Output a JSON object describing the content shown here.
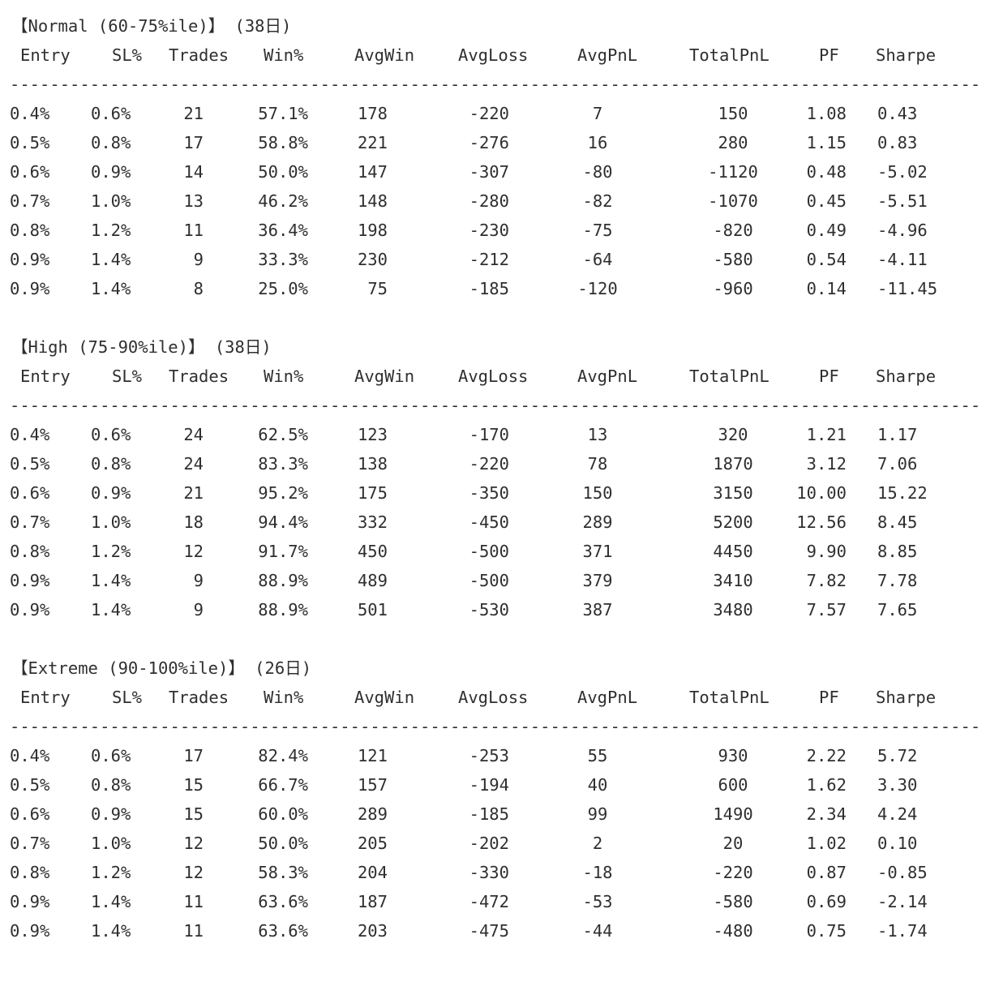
{
  "text_color": "#2f2f2f",
  "background_color": "#ffffff",
  "divider": "-------------------------------------------------------------------------------------------------",
  "columns": [
    "Entry",
    "SL%",
    "Trades",
    "Win%",
    "AvgWin",
    "AvgLoss",
    "AvgPnL",
    "TotalPnL",
    "PF",
    "Sharpe"
  ],
  "sections": [
    {
      "title": "【Normal (60-75%ile)】 (38日)",
      "rows": [
        [
          "0.4%",
          "0.6%",
          "21",
          "57.1%",
          "178",
          "-220",
          "7",
          "150",
          "1.08",
          "0.43"
        ],
        [
          "0.5%",
          "0.8%",
          "17",
          "58.8%",
          "221",
          "-276",
          "16",
          "280",
          "1.15",
          "0.83"
        ],
        [
          "0.6%",
          "0.9%",
          "14",
          "50.0%",
          "147",
          "-307",
          "-80",
          "-1120",
          "0.48",
          "-5.02"
        ],
        [
          "0.7%",
          "1.0%",
          "13",
          "46.2%",
          "148",
          "-280",
          "-82",
          "-1070",
          "0.45",
          "-5.51"
        ],
        [
          "0.8%",
          "1.2%",
          "11",
          "36.4%",
          "198",
          "-230",
          "-75",
          "-820",
          "0.49",
          "-4.96"
        ],
        [
          "0.9%",
          "1.4%",
          "9",
          "33.3%",
          "230",
          "-212",
          "-64",
          "-580",
          "0.54",
          "-4.11"
        ],
        [
          "0.9%",
          "1.4%",
          "8",
          "25.0%",
          "75",
          "-185",
          "-120",
          "-960",
          "0.14",
          "-11.45"
        ]
      ]
    },
    {
      "title": "【High (75-90%ile)】 (38日)",
      "rows": [
        [
          "0.4%",
          "0.6%",
          "24",
          "62.5%",
          "123",
          "-170",
          "13",
          "320",
          "1.21",
          "1.17"
        ],
        [
          "0.5%",
          "0.8%",
          "24",
          "83.3%",
          "138",
          "-220",
          "78",
          "1870",
          "3.12",
          "7.06"
        ],
        [
          "0.6%",
          "0.9%",
          "21",
          "95.2%",
          "175",
          "-350",
          "150",
          "3150",
          "10.00",
          "15.22"
        ],
        [
          "0.7%",
          "1.0%",
          "18",
          "94.4%",
          "332",
          "-450",
          "289",
          "5200",
          "12.56",
          "8.45"
        ],
        [
          "0.8%",
          "1.2%",
          "12",
          "91.7%",
          "450",
          "-500",
          "371",
          "4450",
          "9.90",
          "8.85"
        ],
        [
          "0.9%",
          "1.4%",
          "9",
          "88.9%",
          "489",
          "-500",
          "379",
          "3410",
          "7.82",
          "7.78"
        ],
        [
          "0.9%",
          "1.4%",
          "9",
          "88.9%",
          "501",
          "-530",
          "387",
          "3480",
          "7.57",
          "7.65"
        ]
      ]
    },
    {
      "title": "【Extreme (90-100%ile)】 (26日)",
      "rows": [
        [
          "0.4%",
          "0.6%",
          "17",
          "82.4%",
          "121",
          "-253",
          "55",
          "930",
          "2.22",
          "5.72"
        ],
        [
          "0.5%",
          "0.8%",
          "15",
          "66.7%",
          "157",
          "-194",
          "40",
          "600",
          "1.62",
          "3.30"
        ],
        [
          "0.6%",
          "0.9%",
          "15",
          "60.0%",
          "289",
          "-185",
          "99",
          "1490",
          "2.34",
          "4.24"
        ],
        [
          "0.7%",
          "1.0%",
          "12",
          "50.0%",
          "205",
          "-202",
          "2",
          "20",
          "1.02",
          "0.10"
        ],
        [
          "0.8%",
          "1.2%",
          "12",
          "58.3%",
          "204",
          "-330",
          "-18",
          "-220",
          "0.87",
          "-0.85"
        ],
        [
          "0.9%",
          "1.4%",
          "11",
          "63.6%",
          "187",
          "-472",
          "-53",
          "-580",
          "0.69",
          "-2.14"
        ],
        [
          "0.9%",
          "1.4%",
          "11",
          "63.6%",
          "203",
          "-475",
          "-44",
          "-480",
          "0.75",
          "-1.74"
        ]
      ]
    }
  ]
}
